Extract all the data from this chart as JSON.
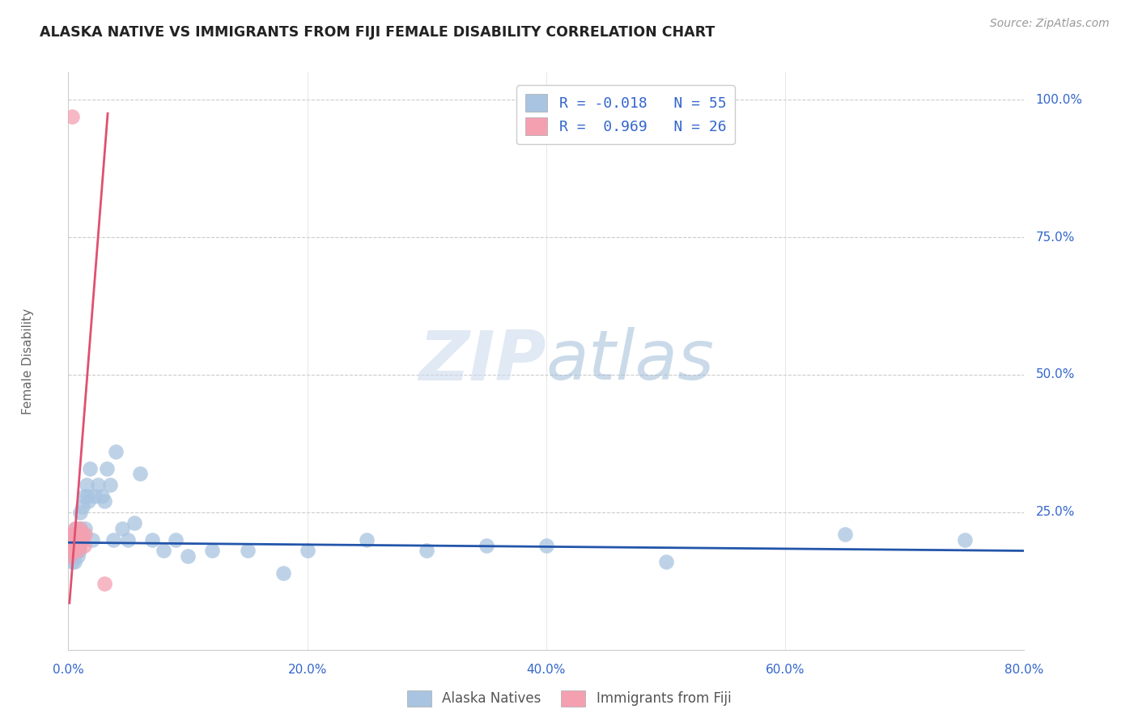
{
  "title": "ALASKA NATIVE VS IMMIGRANTS FROM FIJI FEMALE DISABILITY CORRELATION CHART",
  "source": "Source: ZipAtlas.com",
  "ylabel": "Female Disability",
  "right_yticks": [
    "100.0%",
    "75.0%",
    "50.0%",
    "25.0%"
  ],
  "right_ytick_vals": [
    1.0,
    0.75,
    0.5,
    0.25
  ],
  "legend_blue_R": "R = -0.018",
  "legend_blue_N": "N = 55",
  "legend_pink_R": "R =  0.969",
  "legend_pink_N": "N = 26",
  "legend_label_blue": "Alaska Natives",
  "legend_label_pink": "Immigrants from Fiji",
  "watermark_zip": "ZIP",
  "watermark_atlas": "atlas",
  "blue_color": "#a8c4e0",
  "pink_color": "#f4a0b0",
  "blue_line_color": "#2255aa",
  "pink_line_color": "#e05070",
  "scatter_blue": {
    "x": [
      0.001,
      0.002,
      0.002,
      0.003,
      0.003,
      0.004,
      0.004,
      0.005,
      0.005,
      0.006,
      0.006,
      0.007,
      0.007,
      0.008,
      0.008,
      0.009,
      0.009,
      0.01,
      0.01,
      0.011,
      0.012,
      0.013,
      0.014,
      0.015,
      0.016,
      0.017,
      0.018,
      0.02,
      0.022,
      0.025,
      0.028,
      0.03,
      0.032,
      0.035,
      0.038,
      0.04,
      0.045,
      0.05,
      0.055,
      0.06,
      0.07,
      0.08,
      0.09,
      0.1,
      0.12,
      0.15,
      0.18,
      0.2,
      0.25,
      0.3,
      0.35,
      0.4,
      0.5,
      0.65,
      0.75
    ],
    "y": [
      0.18,
      0.17,
      0.19,
      0.16,
      0.2,
      0.18,
      0.17,
      0.19,
      0.16,
      0.2,
      0.22,
      0.18,
      0.21,
      0.19,
      0.17,
      0.2,
      0.18,
      0.22,
      0.25,
      0.2,
      0.26,
      0.28,
      0.22,
      0.3,
      0.28,
      0.27,
      0.33,
      0.2,
      0.28,
      0.3,
      0.28,
      0.27,
      0.33,
      0.3,
      0.2,
      0.36,
      0.22,
      0.2,
      0.23,
      0.32,
      0.2,
      0.18,
      0.2,
      0.17,
      0.18,
      0.18,
      0.14,
      0.18,
      0.2,
      0.18,
      0.19,
      0.19,
      0.16,
      0.21,
      0.2
    ]
  },
  "scatter_pink": {
    "x": [
      0.001,
      0.001,
      0.002,
      0.002,
      0.003,
      0.003,
      0.004,
      0.004,
      0.005,
      0.005,
      0.006,
      0.006,
      0.007,
      0.007,
      0.008,
      0.008,
      0.009,
      0.009,
      0.01,
      0.01,
      0.011,
      0.012,
      0.013,
      0.014,
      0.03,
      0.003
    ],
    "y": [
      0.17,
      0.19,
      0.18,
      0.2,
      0.19,
      0.21,
      0.18,
      0.2,
      0.19,
      0.21,
      0.2,
      0.22,
      0.19,
      0.21,
      0.18,
      0.2,
      0.19,
      0.21,
      0.2,
      0.22,
      0.21,
      0.2,
      0.19,
      0.21,
      0.12,
      0.97
    ]
  },
  "xlim": [
    0.0,
    0.8
  ],
  "ylim": [
    0.0,
    1.05
  ],
  "blue_trend_x": [
    0.0,
    0.8
  ],
  "blue_trend_y": [
    0.195,
    0.18
  ],
  "pink_trend_x": [
    0.001,
    0.033
  ],
  "pink_trend_y": [
    0.085,
    0.975
  ]
}
